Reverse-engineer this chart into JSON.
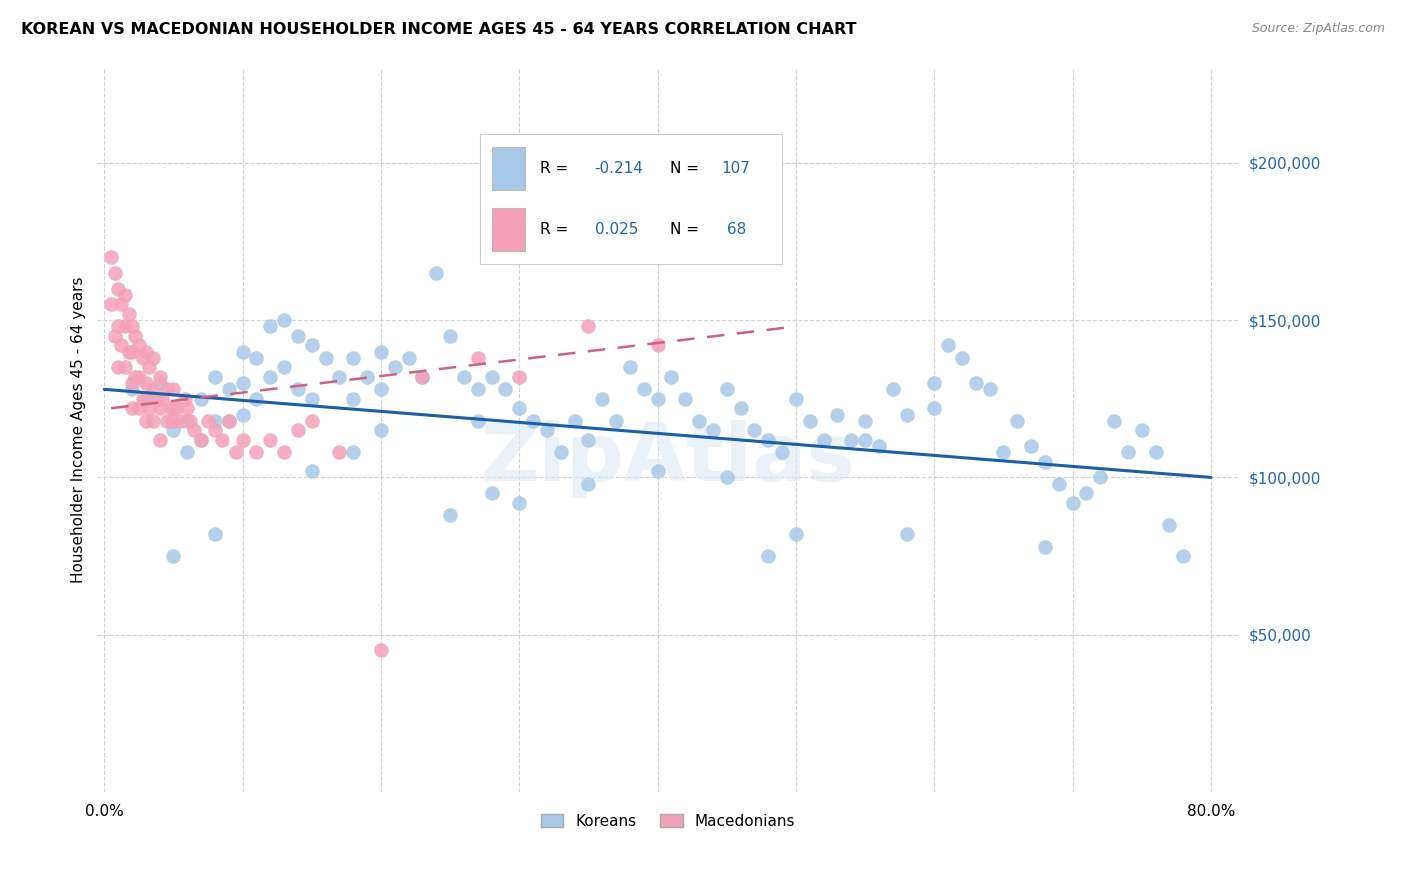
{
  "title": "KOREAN VS MACEDONIAN HOUSEHOLDER INCOME AGES 45 - 64 YEARS CORRELATION CHART",
  "source": "Source: ZipAtlas.com",
  "ylabel": "Householder Income Ages 45 - 64 years",
  "xlim": [
    -0.005,
    0.82
  ],
  "ylim": [
    0,
    230000
  ],
  "yticks": [
    50000,
    100000,
    150000,
    200000
  ],
  "ytick_labels": [
    "$50,000",
    "$100,000",
    "$150,000",
    "$200,000"
  ],
  "xticks": [
    0.0,
    0.1,
    0.2,
    0.3,
    0.4,
    0.5,
    0.6,
    0.7,
    0.8
  ],
  "xtick_labels": [
    "0.0%",
    "",
    "",
    "",
    "",
    "",
    "",
    "",
    "80.0%"
  ],
  "korean_color": "#a8c8e8",
  "macedonian_color": "#f4a0b8",
  "korean_line_color": "#1a5fa8",
  "macedonian_line_color": "#d06080",
  "korean_x": [
    0.02,
    0.03,
    0.04,
    0.05,
    0.05,
    0.06,
    0.06,
    0.07,
    0.07,
    0.08,
    0.08,
    0.09,
    0.09,
    0.1,
    0.1,
    0.1,
    0.11,
    0.11,
    0.12,
    0.12,
    0.13,
    0.13,
    0.14,
    0.14,
    0.15,
    0.15,
    0.16,
    0.17,
    0.18,
    0.18,
    0.19,
    0.2,
    0.2,
    0.21,
    0.22,
    0.23,
    0.24,
    0.25,
    0.26,
    0.27,
    0.27,
    0.28,
    0.29,
    0.3,
    0.31,
    0.32,
    0.33,
    0.34,
    0.35,
    0.36,
    0.37,
    0.38,
    0.39,
    0.4,
    0.41,
    0.42,
    0.43,
    0.44,
    0.45,
    0.46,
    0.47,
    0.48,
    0.49,
    0.5,
    0.51,
    0.52,
    0.53,
    0.54,
    0.55,
    0.56,
    0.57,
    0.58,
    0.6,
    0.61,
    0.62,
    0.63,
    0.64,
    0.65,
    0.66,
    0.67,
    0.68,
    0.69,
    0.7,
    0.71,
    0.72,
    0.73,
    0.74,
    0.75,
    0.76,
    0.77,
    0.6,
    0.45,
    0.35,
    0.25,
    0.15,
    0.08,
    0.05,
    0.2,
    0.3,
    0.5,
    0.55,
    0.4,
    0.28,
    0.18,
    0.48,
    0.58,
    0.68,
    0.78
  ],
  "korean_y": [
    128000,
    125000,
    130000,
    122000,
    115000,
    118000,
    108000,
    125000,
    112000,
    132000,
    118000,
    128000,
    118000,
    140000,
    130000,
    120000,
    138000,
    125000,
    148000,
    132000,
    150000,
    135000,
    145000,
    128000,
    142000,
    125000,
    138000,
    132000,
    138000,
    125000,
    132000,
    140000,
    128000,
    135000,
    138000,
    132000,
    165000,
    145000,
    132000,
    128000,
    118000,
    132000,
    128000,
    122000,
    118000,
    115000,
    108000,
    118000,
    112000,
    125000,
    118000,
    135000,
    128000,
    125000,
    132000,
    125000,
    118000,
    115000,
    128000,
    122000,
    115000,
    112000,
    108000,
    125000,
    118000,
    112000,
    120000,
    112000,
    118000,
    110000,
    128000,
    120000,
    130000,
    142000,
    138000,
    130000,
    128000,
    108000,
    118000,
    110000,
    105000,
    98000,
    92000,
    95000,
    100000,
    118000,
    108000,
    115000,
    108000,
    85000,
    122000,
    100000,
    98000,
    88000,
    102000,
    82000,
    75000,
    115000,
    92000,
    82000,
    112000,
    102000,
    95000,
    108000,
    75000,
    82000,
    78000,
    75000
  ],
  "macedonian_x": [
    0.005,
    0.005,
    0.008,
    0.008,
    0.01,
    0.01,
    0.01,
    0.012,
    0.012,
    0.015,
    0.015,
    0.015,
    0.018,
    0.018,
    0.02,
    0.02,
    0.02,
    0.02,
    0.022,
    0.022,
    0.025,
    0.025,
    0.025,
    0.028,
    0.028,
    0.03,
    0.03,
    0.03,
    0.032,
    0.032,
    0.035,
    0.035,
    0.035,
    0.038,
    0.04,
    0.04,
    0.04,
    0.042,
    0.045,
    0.045,
    0.048,
    0.05,
    0.05,
    0.052,
    0.055,
    0.058,
    0.06,
    0.062,
    0.065,
    0.07,
    0.075,
    0.08,
    0.085,
    0.09,
    0.095,
    0.1,
    0.11,
    0.12,
    0.13,
    0.14,
    0.15,
    0.17,
    0.2,
    0.23,
    0.27,
    0.3,
    0.35,
    0.4
  ],
  "macedonian_y": [
    170000,
    155000,
    165000,
    145000,
    160000,
    148000,
    135000,
    155000,
    142000,
    158000,
    148000,
    135000,
    152000,
    140000,
    148000,
    140000,
    130000,
    122000,
    145000,
    132000,
    142000,
    132000,
    122000,
    138000,
    125000,
    140000,
    130000,
    118000,
    135000,
    122000,
    138000,
    128000,
    118000,
    125000,
    132000,
    122000,
    112000,
    125000,
    128000,
    118000,
    122000,
    128000,
    118000,
    122000,
    118000,
    125000,
    122000,
    118000,
    115000,
    112000,
    118000,
    115000,
    112000,
    118000,
    108000,
    112000,
    108000,
    112000,
    108000,
    115000,
    118000,
    108000,
    45000,
    132000,
    138000,
    132000,
    148000,
    142000
  ],
  "korean_trend_x": [
    0.0,
    0.8
  ],
  "korean_trend_y": [
    128000,
    100000
  ],
  "macedonian_trend_x": [
    0.005,
    0.5
  ],
  "macedonian_trend_y": [
    122000,
    148000
  ]
}
